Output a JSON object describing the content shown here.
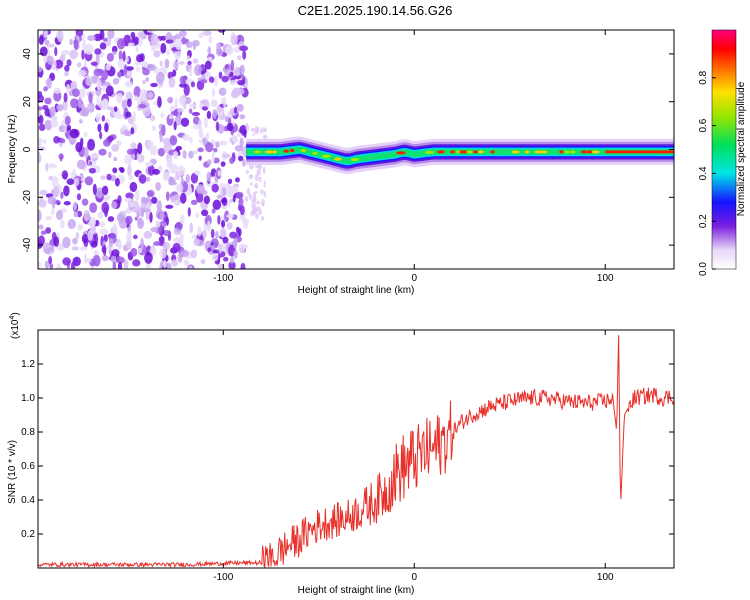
{
  "title": "C2E1.2025.190.14.56.G26",
  "chart_data": [
    {
      "type": "heatmap",
      "xlabel": "Height of straight line (km)",
      "ylabel": "Frequency (Hz)",
      "xlim": [
        -197,
        136
      ],
      "ylim": [
        -50,
        50
      ],
      "x_ticks": [
        -100,
        0,
        100
      ],
      "x_tick_labels": [
        "-100",
        "0",
        "100"
      ],
      "y_ticks": [
        -40,
        -20,
        0,
        20,
        40
      ],
      "y_tick_labels": [
        "-40",
        "-20",
        "0",
        "20",
        "40"
      ],
      "noise_region_x": [
        -197,
        -88
      ],
      "signal_ridge": {
        "x": [
          -88,
          -80,
          -70,
          -60,
          -50,
          -40,
          -35,
          -30,
          -20,
          -10,
          -5,
          0,
          10,
          20,
          40,
          60,
          80,
          100,
          110,
          120,
          136
        ],
        "freq_hz": [
          -1,
          -1,
          -1,
          0,
          -2,
          -4,
          -5,
          -4,
          -3,
          -2,
          -1,
          -2,
          -1,
          -1,
          -1,
          -1,
          -1,
          -1,
          -1,
          -1,
          -1
        ]
      },
      "colorbar": {
        "label": "Normalized spectral amplitude",
        "range": [
          0,
          1
        ],
        "ticks": [
          0.0,
          0.2,
          0.4,
          0.6,
          0.8
        ],
        "tick_labels": [
          "0.0",
          "0.2",
          "0.4",
          "0.6",
          "0.8"
        ]
      }
    },
    {
      "type": "line",
      "xlabel": "Height of straight line (km)",
      "ylabel": "SNR (10 * v/v)",
      "y_multiplier": "(x10",
      "y_multiplier_exp": "4",
      "y_multiplier_close": ")",
      "xlim": [
        -197,
        136
      ],
      "ylim": [
        0,
        1.4
      ],
      "x_ticks": [
        -100,
        0,
        100
      ],
      "x_tick_labels": [
        "-100",
        "0",
        "100"
      ],
      "y_ticks": [
        0.2,
        0.4,
        0.6,
        0.8,
        1.0,
        1.2
      ],
      "y_tick_labels": [
        "0.2",
        "0.4",
        "0.6",
        "0.8",
        "1.0",
        "1.2"
      ],
      "color": "#e8302a",
      "series": [
        {
          "x": [
            -197,
            -160,
            -120,
            -90,
            -80,
            -75,
            -70,
            -65,
            -60,
            -55,
            -50,
            -45,
            -40,
            -35,
            -30,
            -25,
            -20,
            -15,
            -10,
            -5,
            0,
            5,
            10,
            15,
            20,
            25,
            30,
            40,
            50,
            60,
            70,
            80,
            90,
            100,
            104,
            106,
            107,
            108,
            110,
            115,
            120,
            125,
            130,
            136
          ],
          "y": [
            0.02,
            0.02,
            0.02,
            0.03,
            0.03,
            0.05,
            0.1,
            0.14,
            0.17,
            0.22,
            0.25,
            0.27,
            0.28,
            0.3,
            0.33,
            0.36,
            0.4,
            0.45,
            0.55,
            0.6,
            0.63,
            0.68,
            0.7,
            0.74,
            0.8,
            0.86,
            0.9,
            0.95,
            0.98,
            1.0,
            1.0,
            0.98,
            0.97,
            0.98,
            1.0,
            0.8,
            1.37,
            0.35,
            0.9,
            1.0,
            1.01,
            1.02,
            1.0,
            1.01
          ]
        }
      ]
    }
  ]
}
